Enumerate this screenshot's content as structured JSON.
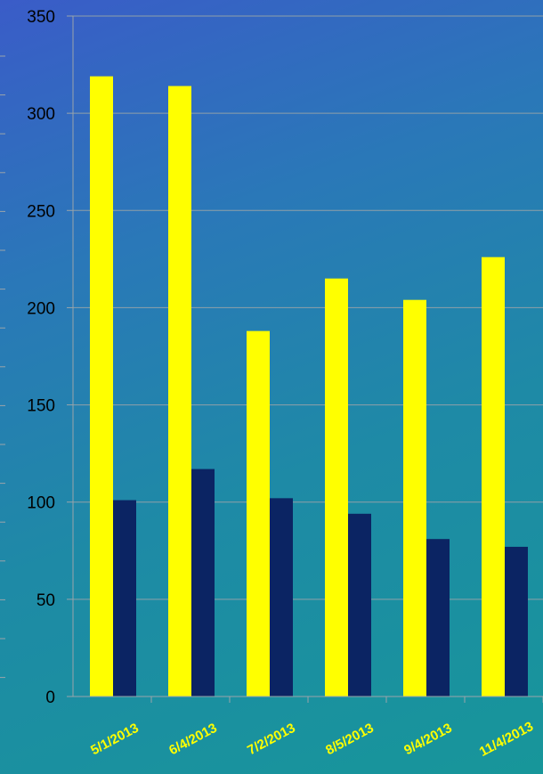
{
  "chart_data": {
    "type": "bar",
    "title": "",
    "xlabel": "",
    "ylabel": "",
    "categories": [
      "5/1/2013",
      "6/4/2013",
      "7/2/2013",
      "8/5/2013",
      "9/4/2013",
      "11/4/2013"
    ],
    "series": [
      {
        "values": [
          319,
          314,
          188,
          215,
          204,
          226
        ],
        "color": "#ffff00"
      },
      {
        "values": [
          101,
          117,
          102,
          94,
          81,
          77
        ],
        "color": "#0b2463"
      }
    ],
    "ylim": [
      0,
      350
    ],
    "yticks": [
      "0",
      "50",
      "100",
      "150",
      "200",
      "250",
      "300",
      "350"
    ],
    "grid": true,
    "legend": "none",
    "colors": {
      "gridline": "#8fa0a8",
      "axis": "#9aa4aa",
      "tick_text": "#000000",
      "category_text": "#ffff00"
    }
  }
}
